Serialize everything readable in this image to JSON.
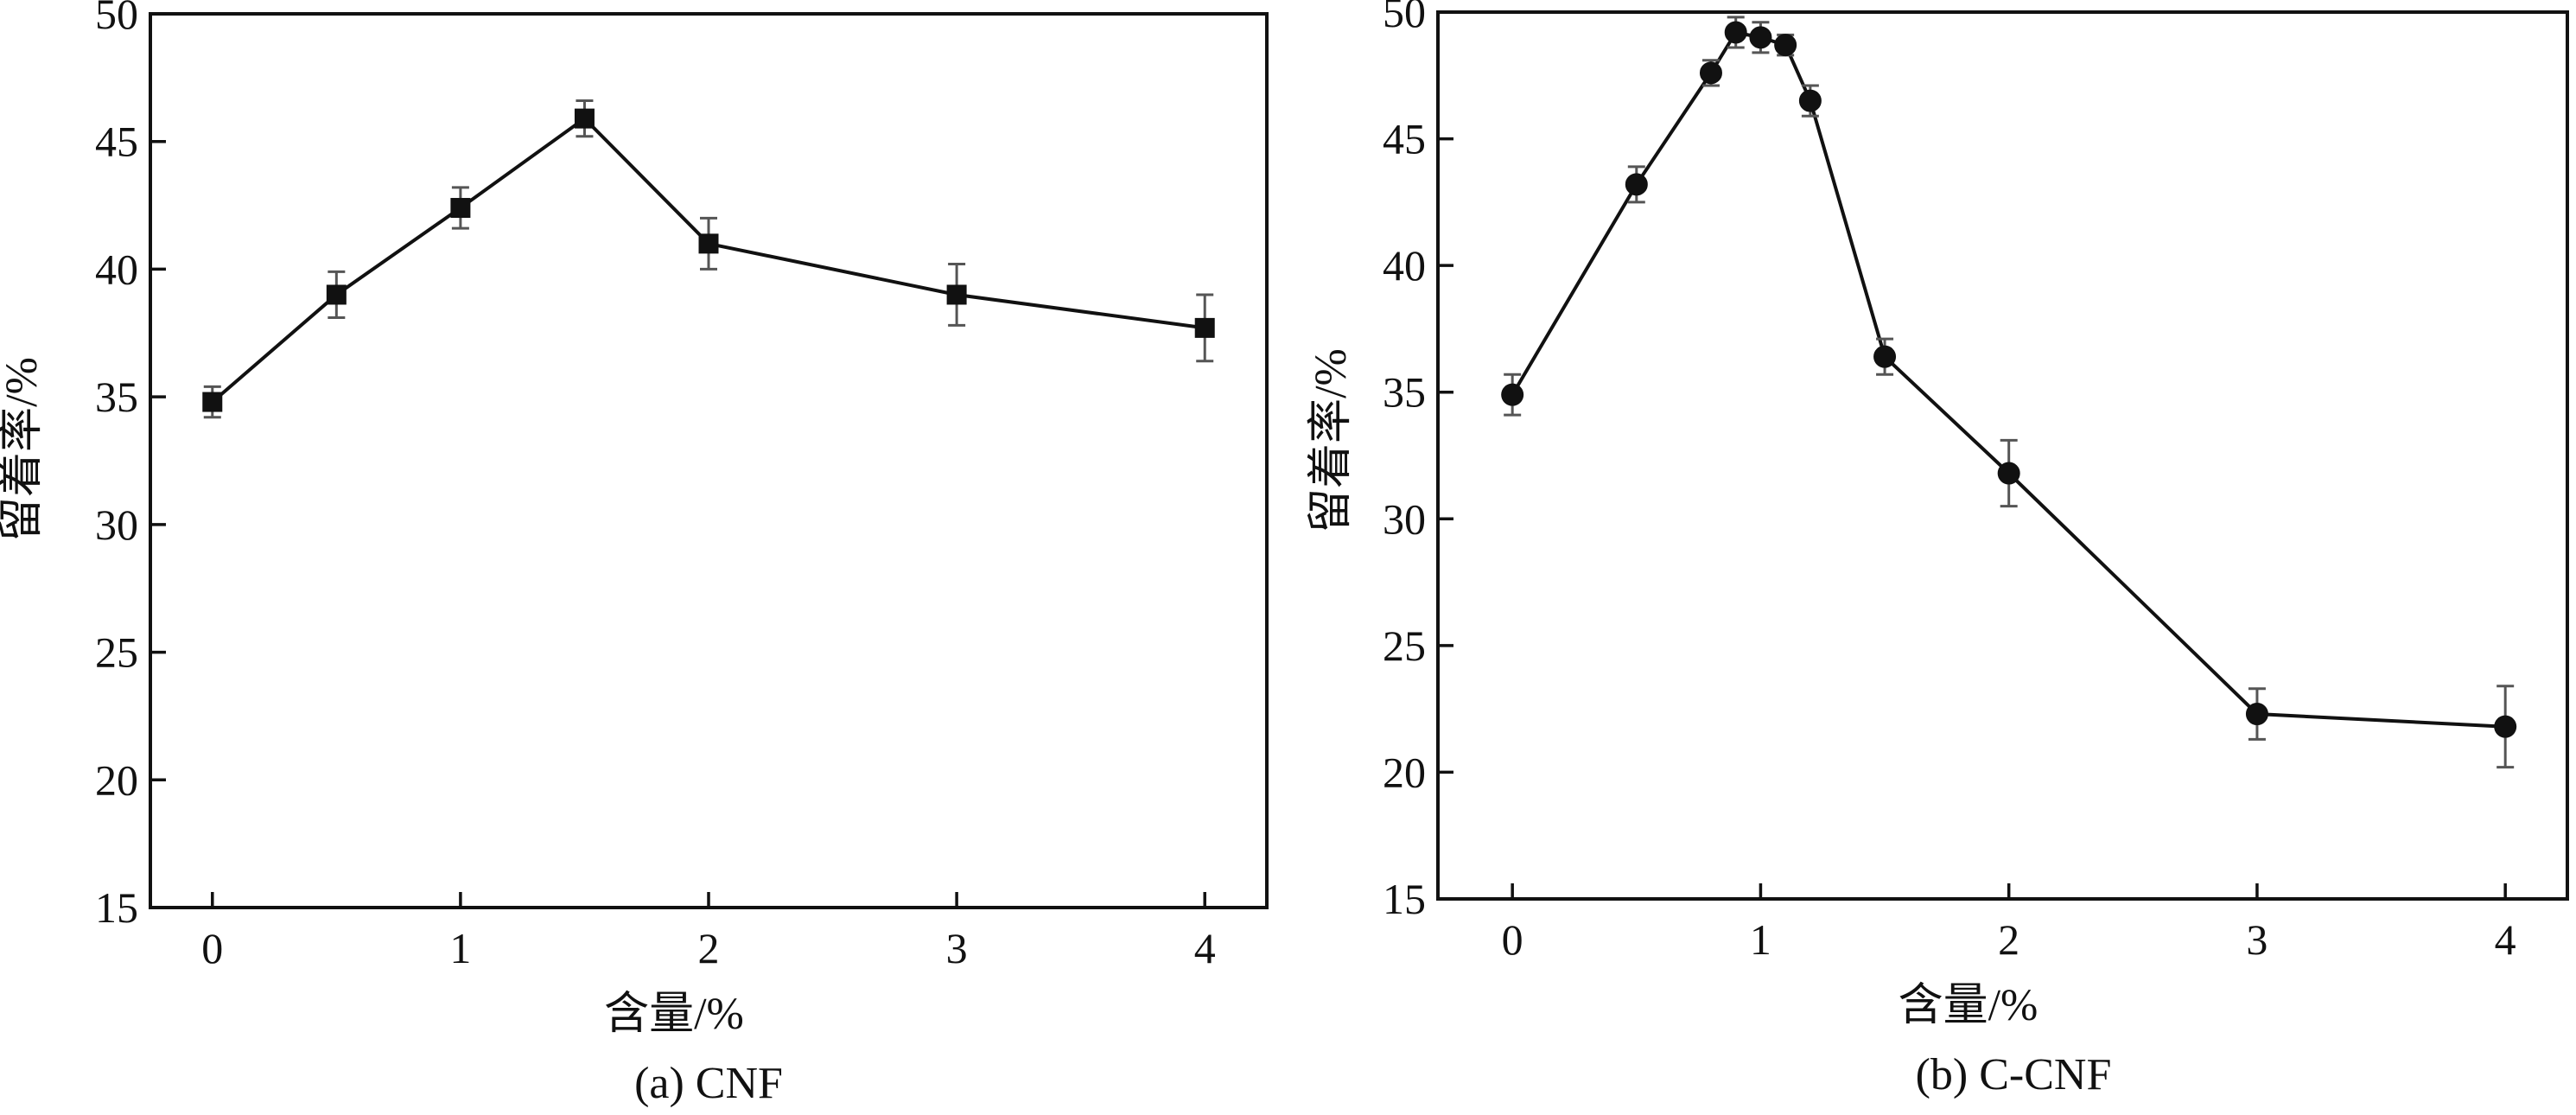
{
  "chart_data": [
    {
      "type": "line",
      "caption": "(a) CNF",
      "xlabel": "含量/%",
      "ylabel": "留着率/%",
      "xlim": [
        -0.25,
        4.25
      ],
      "ylim": [
        15,
        50
      ],
      "xticks": [
        0,
        1,
        2,
        3,
        4
      ],
      "yticks": [
        15,
        20,
        25,
        30,
        35,
        40,
        45,
        50
      ],
      "marker": "square",
      "series": [
        {
          "x": [
            0,
            0.5,
            1,
            1.5,
            2,
            3,
            4
          ],
          "y": [
            34.8,
            39.0,
            42.4,
            45.9,
            41.0,
            39.0,
            37.7
          ],
          "err": [
            0.6,
            0.9,
            0.8,
            0.7,
            1.0,
            1.2,
            1.3
          ]
        }
      ]
    },
    {
      "type": "line",
      "caption": "(b) C-CNF",
      "xlabel": "含量/%",
      "ylabel": "留着率/%",
      "xlim": [
        -0.3,
        4.25
      ],
      "ylim": [
        15,
        50
      ],
      "xticks": [
        0,
        1,
        2,
        3,
        4
      ],
      "yticks": [
        15,
        20,
        25,
        30,
        35,
        40,
        45,
        50
      ],
      "marker": "circle",
      "series": [
        {
          "x": [
            0,
            0.5,
            0.8,
            0.9,
            1.0,
            1.1,
            1.2,
            1.5,
            2,
            3,
            4
          ],
          "y": [
            34.9,
            43.2,
            47.6,
            49.2,
            49.0,
            48.7,
            46.5,
            36.4,
            31.8,
            22.3,
            21.8
          ],
          "err": [
            0.8,
            0.7,
            0.5,
            0.6,
            0.6,
            0.4,
            0.6,
            0.7,
            1.3,
            1.0,
            1.6
          ]
        }
      ]
    }
  ]
}
